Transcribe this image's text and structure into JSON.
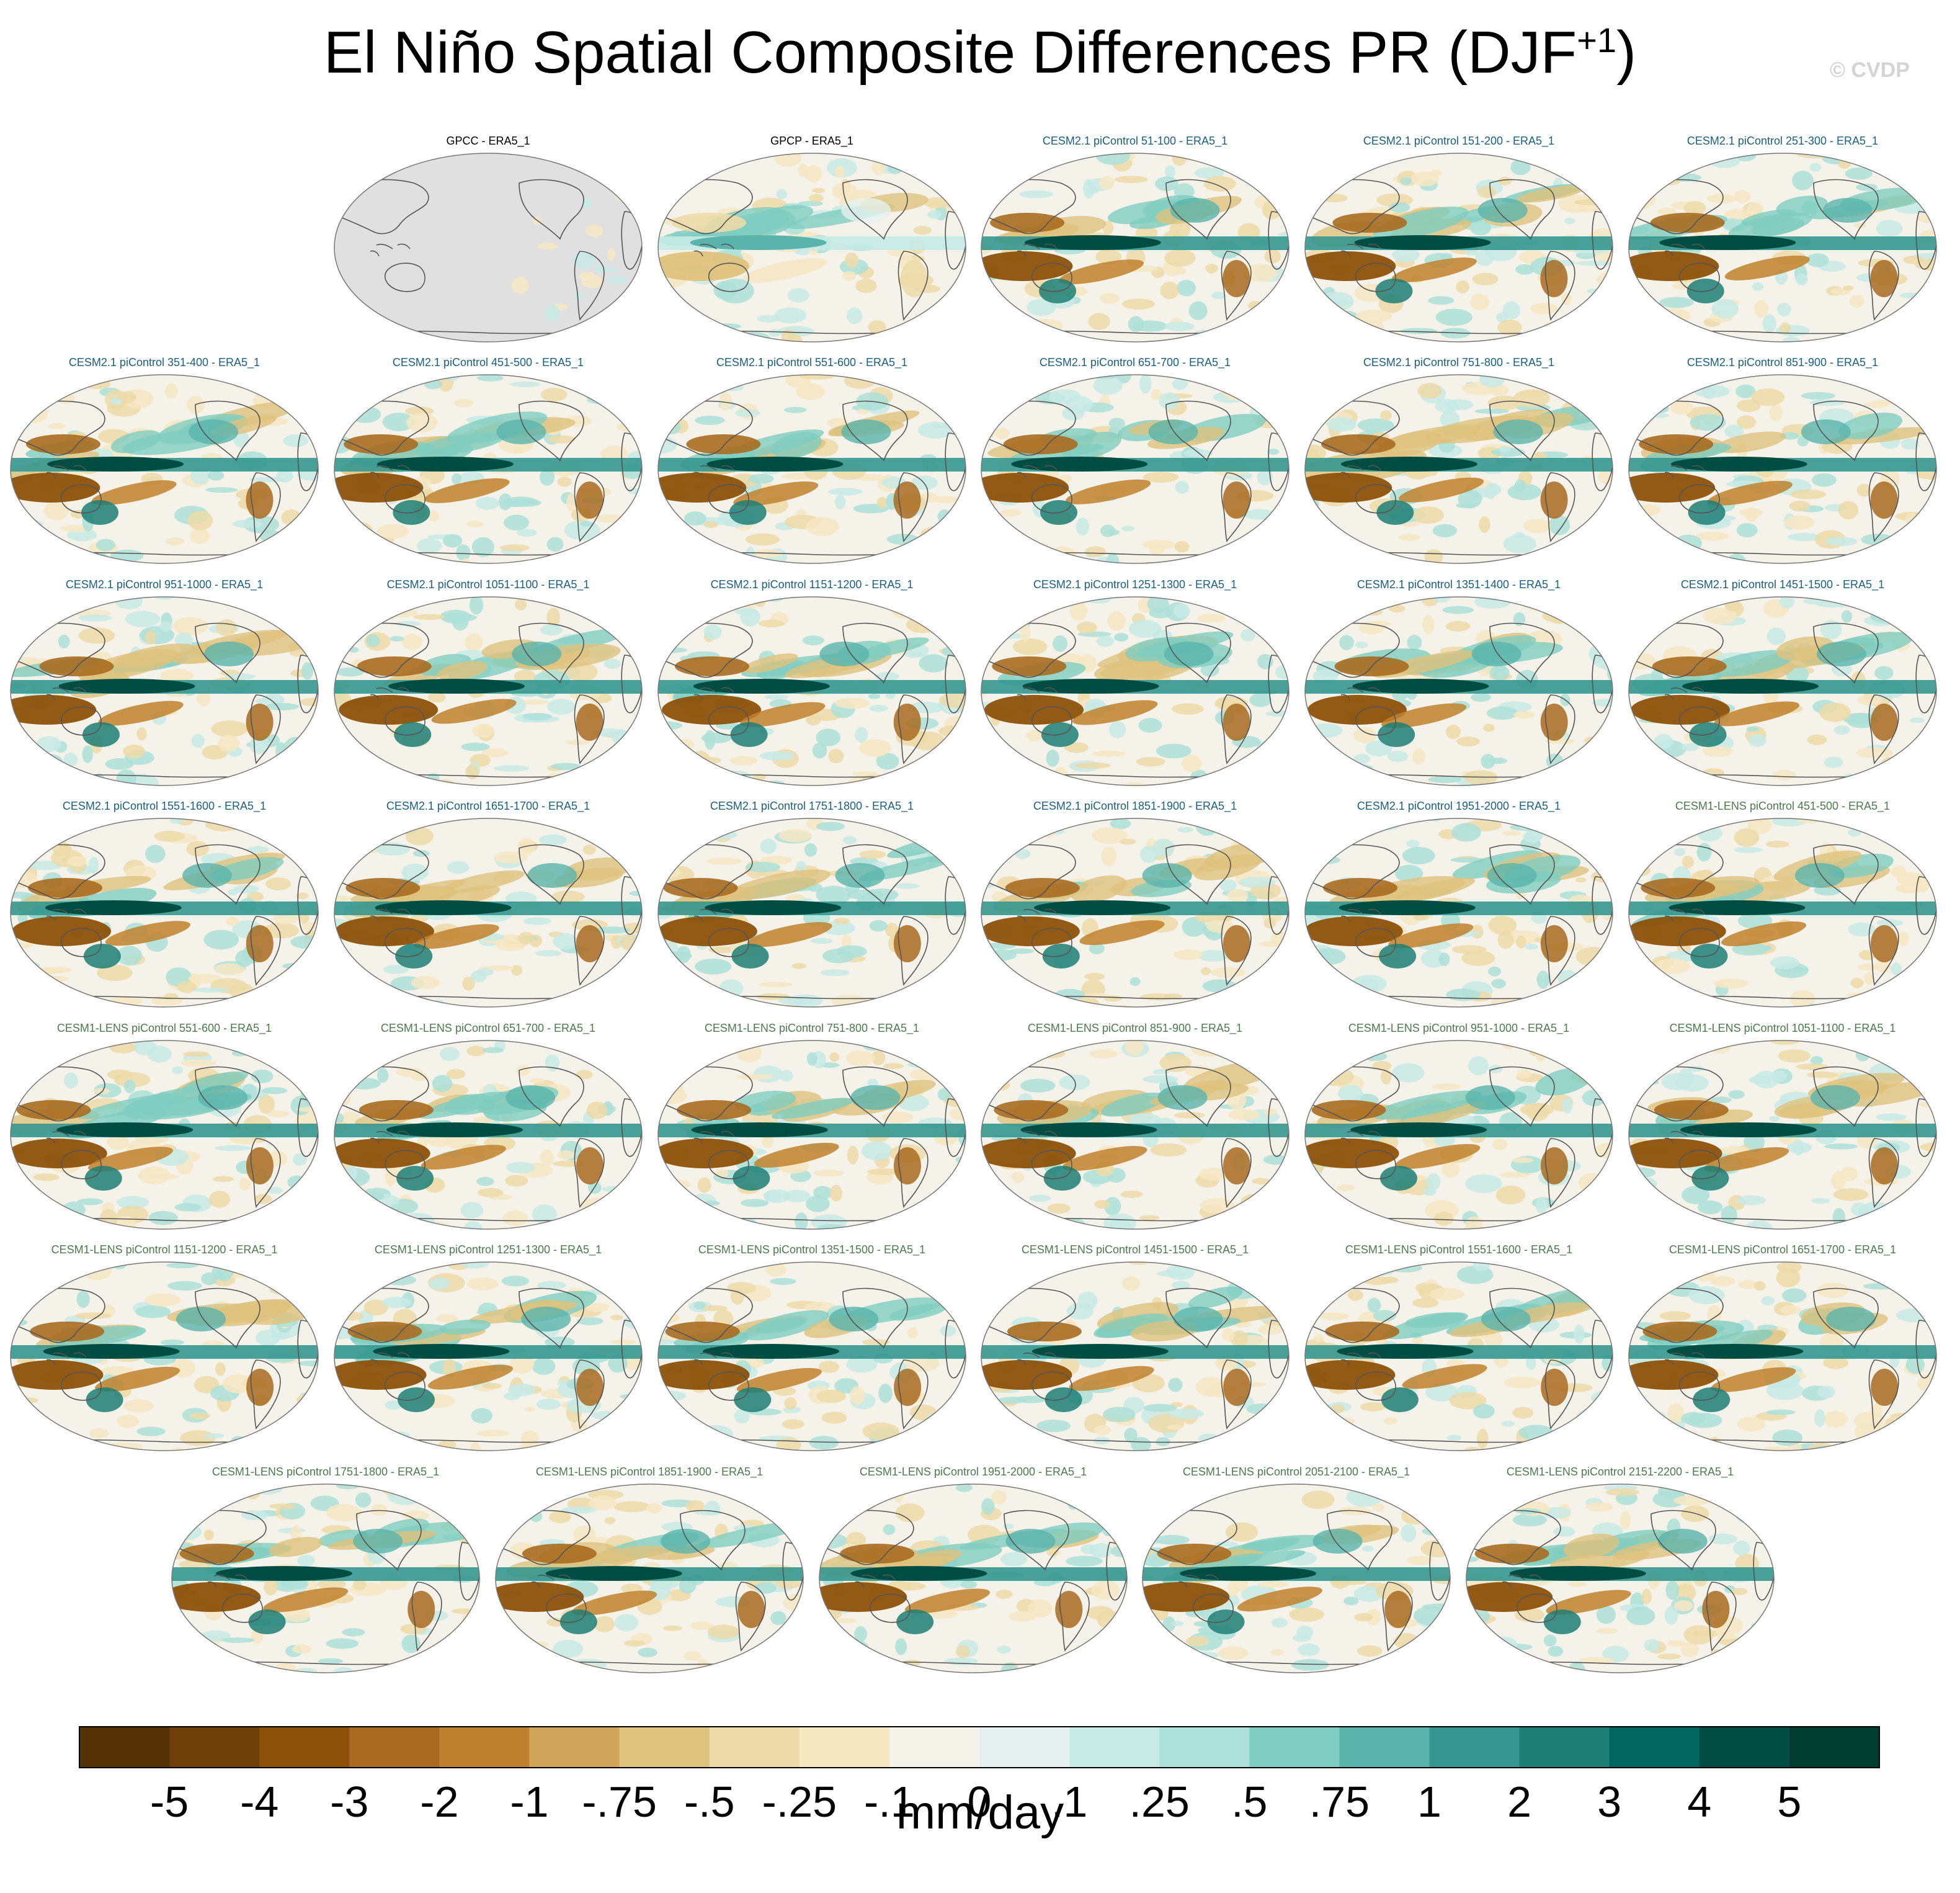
{
  "title": "El Niño Spatial Composite Differences PR (DJF",
  "title_sup": "+1",
  "title_close": ")",
  "watermark": "© CVDP",
  "chart_data": {
    "type": "heatmap",
    "description_units": "mm/day",
    "panels": [
      {
        "label": "GPCC - ERA5_1",
        "group": "obs",
        "land_only": true,
        "strength": 0.25
      },
      {
        "label": "GPCP - ERA5_1",
        "group": "obs",
        "land_only": false,
        "strength": 0.35
      },
      {
        "label": "CESM2.1 piControl 51-100 - ERA5_1",
        "group": "cesm2"
      },
      {
        "label": "CESM2.1 piControl 151-200 - ERA5_1",
        "group": "cesm2"
      },
      {
        "label": "CESM2.1 piControl 251-300 - ERA5_1",
        "group": "cesm2"
      },
      {
        "label": "CESM2.1 piControl 351-400 - ERA5_1",
        "group": "cesm2"
      },
      {
        "label": "CESM2.1 piControl 451-500 - ERA5_1",
        "group": "cesm2"
      },
      {
        "label": "CESM2.1 piControl 551-600 - ERA5_1",
        "group": "cesm2"
      },
      {
        "label": "CESM2.1 piControl 651-700 - ERA5_1",
        "group": "cesm2"
      },
      {
        "label": "CESM2.1 piControl 751-800 - ERA5_1",
        "group": "cesm2"
      },
      {
        "label": "CESM2.1 piControl 851-900 - ERA5_1",
        "group": "cesm2"
      },
      {
        "label": "CESM2.1 piControl 951-1000 - ERA5_1",
        "group": "cesm2"
      },
      {
        "label": "CESM2.1 piControl 1051-1100 - ERA5_1",
        "group": "cesm2"
      },
      {
        "label": "CESM2.1 piControl 1151-1200 - ERA5_1",
        "group": "cesm2"
      },
      {
        "label": "CESM2.1 piControl 1251-1300 - ERA5_1",
        "group": "cesm2"
      },
      {
        "label": "CESM2.1 piControl 1351-1400 - ERA5_1",
        "group": "cesm2"
      },
      {
        "label": "CESM2.1 piControl 1451-1500 - ERA5_1",
        "group": "cesm2"
      },
      {
        "label": "CESM2.1 piControl 1551-1600 - ERA5_1",
        "group": "cesm2"
      },
      {
        "label": "CESM2.1 piControl 1651-1700 - ERA5_1",
        "group": "cesm2"
      },
      {
        "label": "CESM2.1 piControl 1751-1800 - ERA5_1",
        "group": "cesm2"
      },
      {
        "label": "CESM2.1 piControl 1851-1900 - ERA5_1",
        "group": "cesm2"
      },
      {
        "label": "CESM2.1 piControl 1951-2000 - ERA5_1",
        "group": "cesm2"
      },
      {
        "label": "CESM1-LENS piControl 451-500 - ERA5_1",
        "group": "cesm1"
      },
      {
        "label": "CESM1-LENS piControl 551-600 - ERA5_1",
        "group": "cesm1"
      },
      {
        "label": "CESM1-LENS piControl 651-700 - ERA5_1",
        "group": "cesm1"
      },
      {
        "label": "CESM1-LENS piControl 751-800 - ERA5_1",
        "group": "cesm1"
      },
      {
        "label": "CESM1-LENS piControl 851-900 - ERA5_1",
        "group": "cesm1"
      },
      {
        "label": "CESM1-LENS piControl 951-1000 - ERA5_1",
        "group": "cesm1"
      },
      {
        "label": "CESM1-LENS piControl 1051-1100 - ERA5_1",
        "group": "cesm1"
      },
      {
        "label": "CESM1-LENS piControl 1151-1200 - ERA5_1",
        "group": "cesm1"
      },
      {
        "label": "CESM1-LENS piControl 1251-1300 - ERA5_1",
        "group": "cesm1"
      },
      {
        "label": "CESM1-LENS piControl 1351-1500 - ERA5_1",
        "group": "cesm1"
      },
      {
        "label": "CESM1-LENS piControl 1451-1500 - ERA5_1",
        "group": "cesm1"
      },
      {
        "label": "CESM1-LENS piControl 1551-1600 - ERA5_1",
        "group": "cesm1"
      },
      {
        "label": "CESM1-LENS piControl 1651-1700 - ERA5_1",
        "group": "cesm1"
      },
      {
        "label": "CESM1-LENS piControl 1751-1800 - ERA5_1",
        "group": "cesm1"
      },
      {
        "label": "CESM1-LENS piControl 1851-1900 - ERA5_1",
        "group": "cesm1"
      },
      {
        "label": "CESM1-LENS piControl 1951-2000 - ERA5_1",
        "group": "cesm1"
      },
      {
        "label": "CESM1-LENS piControl 2051-2100 - ERA5_1",
        "group": "cesm1"
      },
      {
        "label": "CESM1-LENS piControl 2151-2200 - ERA5_1",
        "group": "cesm1"
      }
    ],
    "colorbar": {
      "label": "mm/day",
      "ticks": [
        "-5",
        "-4",
        "-3",
        "-2",
        "-1",
        "-.75",
        "-.5",
        "-.25",
        "-.1",
        "0",
        ".1",
        ".25",
        ".5",
        ".75",
        "1",
        "2",
        "3",
        "4",
        "5"
      ],
      "colors": [
        "#543005",
        "#6f3f0a",
        "#8c510a",
        "#a86b20",
        "#bf812d",
        "#d2a55d",
        "#dfc27d",
        "#ecdaa8",
        "#f6e8c3",
        "#f5f2ea",
        "#e6f1ef",
        "#c7eae5",
        "#ade0d8",
        "#80cdc1",
        "#5ab4ab",
        "#35978f",
        "#1d7f76",
        "#01665e",
        "#014d44",
        "#003c30"
      ]
    },
    "title_colors": {
      "obs": "#000000",
      "cesm2": "#1a5e80",
      "cesm1": "#4b7a4b"
    },
    "map_colors": {
      "land_gray": "#e0e0e0",
      "coast": "#555555"
    }
  }
}
